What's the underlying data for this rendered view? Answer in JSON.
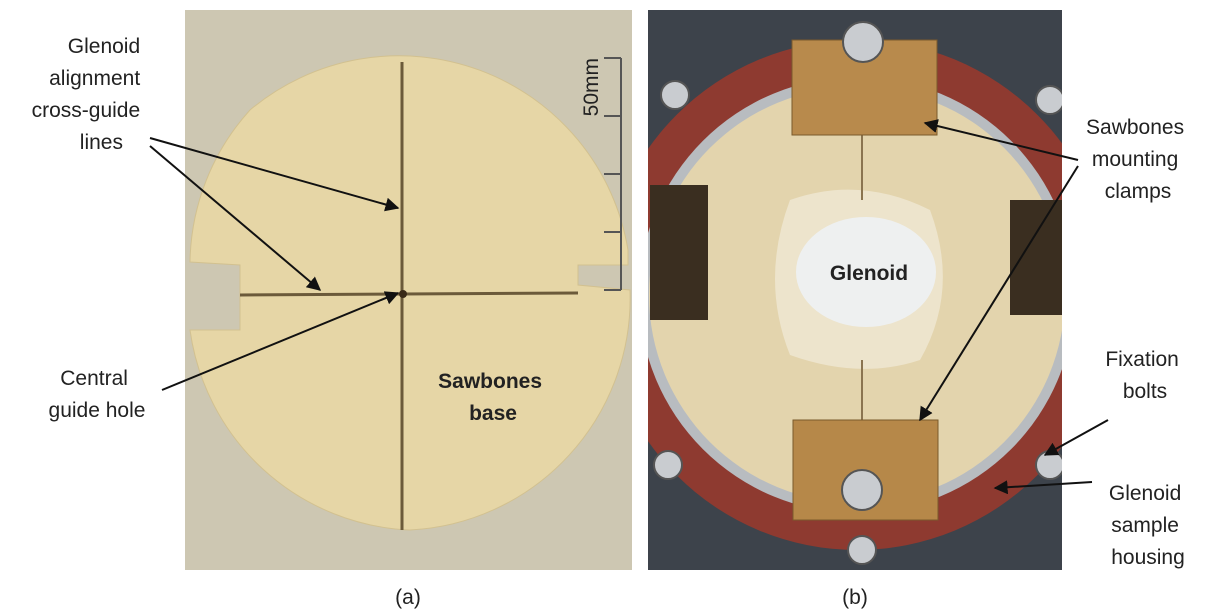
{
  "panel_a": {
    "cross_guide_label": [
      "Glenoid",
      "alignment",
      "cross-guide",
      "lines"
    ],
    "hole_label": [
      "Central",
      "guide hole"
    ],
    "base_label": [
      "Sawbones",
      "base"
    ],
    "scale_label": "50mm",
    "caption": "(a)"
  },
  "panel_b": {
    "glenoid_label": "Glenoid",
    "clamps_label": [
      "Sawbones",
      "mounting",
      "clamps"
    ],
    "bolts_label": [
      "Fixation",
      "bolts"
    ],
    "housing_label": [
      "Glenoid",
      "sample",
      "housing"
    ],
    "caption": "(b)"
  }
}
